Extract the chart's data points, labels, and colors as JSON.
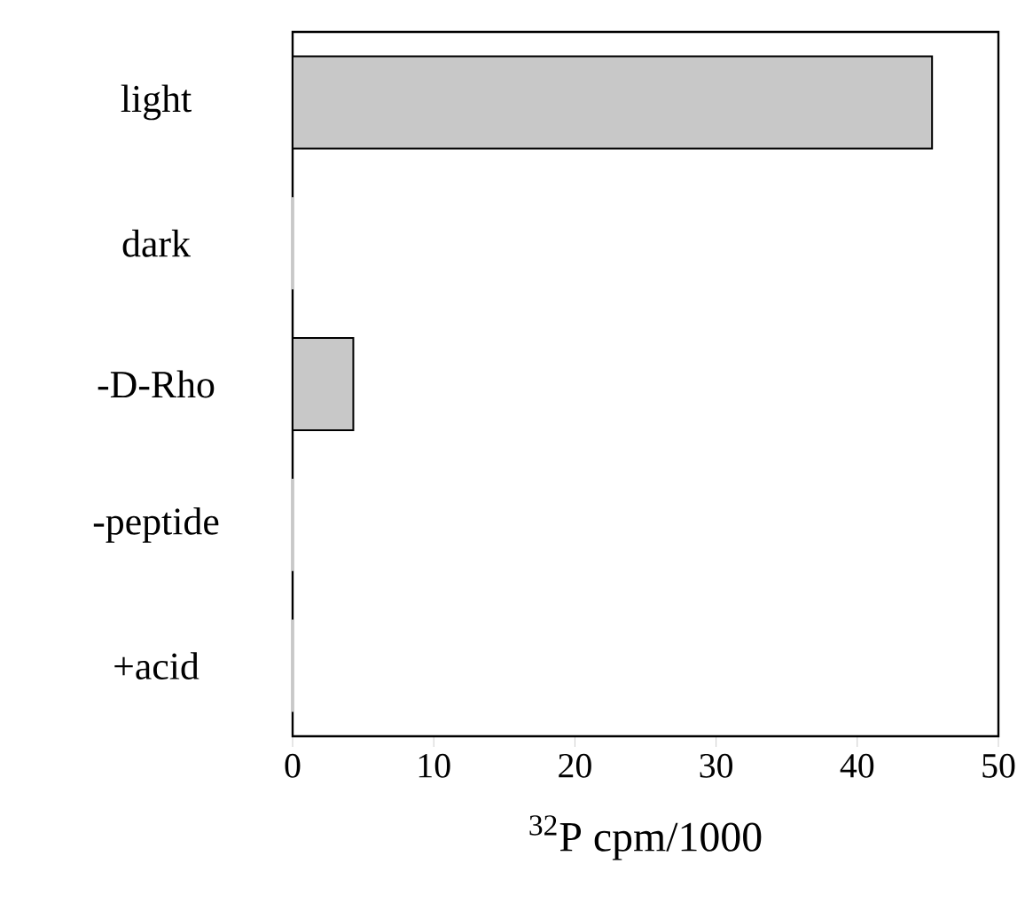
{
  "chart_data": {
    "type": "bar",
    "orientation": "horizontal",
    "categories": [
      "light",
      "dark",
      "-D-Rho",
      "-peptide",
      "+acid"
    ],
    "values": [
      45.3,
      0,
      4.3,
      0,
      0
    ],
    "color": "#c8c8c8",
    "xlabel": "$^{32}$P cpm/1000",
    "xlim": [
      0,
      50
    ],
    "xticks": [
      0,
      10,
      20,
      30,
      40,
      50
    ]
  }
}
